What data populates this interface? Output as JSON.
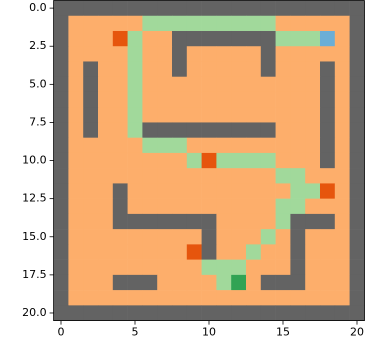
{
  "chart_data": {
    "type": "heatmap",
    "colors": [
      "#fdae6b",
      "#636363",
      "#a1d99b",
      "#e6550d",
      "#6baed6",
      "#31a354"
    ],
    "xlim": [
      -0.5,
      20.5
    ],
    "ylim": [
      20.5,
      -0.5
    ],
    "xticks": [
      0,
      5,
      10,
      15,
      20
    ],
    "yticks": [
      {
        "value": 0,
        "label": "0.0"
      },
      {
        "value": 2.5,
        "label": "2.5"
      },
      {
        "value": 5,
        "label": "5.0"
      },
      {
        "value": 7.5,
        "label": "7.5"
      },
      {
        "value": 10,
        "label": "10.0"
      },
      {
        "value": 12.5,
        "label": "12.5"
      },
      {
        "value": 15,
        "label": "15.0"
      },
      {
        "value": 17.5,
        "label": "17.5"
      },
      {
        "value": 20,
        "label": "20.0"
      }
    ],
    "z": [
      [
        1,
        1,
        1,
        1,
        1,
        1,
        1,
        1,
        1,
        1,
        1,
        1,
        1,
        1,
        1,
        1,
        1,
        1,
        1,
        1,
        1
      ],
      [
        1,
        0,
        0,
        0,
        0,
        0,
        2,
        2,
        2,
        2,
        2,
        2,
        2,
        2,
        2,
        0,
        0,
        0,
        0,
        0,
        1
      ],
      [
        1,
        0,
        0,
        0,
        3,
        2,
        0,
        0,
        1,
        1,
        1,
        1,
        1,
        1,
        1,
        2,
        2,
        2,
        4,
        0,
        1
      ],
      [
        1,
        0,
        0,
        0,
        0,
        2,
        0,
        0,
        1,
        0,
        0,
        0,
        0,
        0,
        1,
        0,
        0,
        0,
        0,
        0,
        1
      ],
      [
        1,
        0,
        1,
        0,
        0,
        2,
        0,
        0,
        1,
        0,
        0,
        0,
        0,
        0,
        1,
        0,
        0,
        0,
        1,
        0,
        1
      ],
      [
        1,
        0,
        1,
        0,
        0,
        2,
        0,
        0,
        0,
        0,
        0,
        0,
        0,
        0,
        0,
        0,
        0,
        0,
        1,
        0,
        1
      ],
      [
        1,
        0,
        1,
        0,
        0,
        2,
        0,
        0,
        0,
        0,
        0,
        0,
        0,
        0,
        0,
        0,
        0,
        0,
        1,
        0,
        1
      ],
      [
        1,
        0,
        1,
        0,
        0,
        2,
        0,
        0,
        0,
        0,
        0,
        0,
        0,
        0,
        0,
        0,
        0,
        0,
        1,
        0,
        1
      ],
      [
        1,
        0,
        1,
        0,
        0,
        2,
        1,
        1,
        1,
        1,
        1,
        1,
        1,
        1,
        1,
        0,
        0,
        0,
        1,
        0,
        1
      ],
      [
        1,
        0,
        0,
        0,
        0,
        0,
        2,
        2,
        2,
        0,
        0,
        0,
        0,
        0,
        0,
        0,
        0,
        0,
        1,
        0,
        1
      ],
      [
        1,
        0,
        0,
        0,
        0,
        0,
        0,
        0,
        0,
        2,
        3,
        2,
        2,
        2,
        2,
        0,
        0,
        0,
        1,
        0,
        1
      ],
      [
        1,
        0,
        0,
        0,
        0,
        0,
        0,
        0,
        0,
        0,
        0,
        0,
        0,
        0,
        0,
        2,
        2,
        0,
        0,
        0,
        1
      ],
      [
        1,
        0,
        0,
        0,
        1,
        0,
        0,
        0,
        0,
        0,
        0,
        0,
        0,
        0,
        0,
        0,
        2,
        2,
        3,
        0,
        1
      ],
      [
        1,
        0,
        0,
        0,
        1,
        0,
        0,
        0,
        0,
        0,
        0,
        0,
        0,
        0,
        0,
        2,
        2,
        0,
        0,
        0,
        1
      ],
      [
        1,
        0,
        0,
        0,
        1,
        1,
        1,
        1,
        1,
        1,
        1,
        0,
        0,
        0,
        0,
        2,
        1,
        1,
        1,
        0,
        1
      ],
      [
        1,
        0,
        0,
        0,
        0,
        0,
        0,
        0,
        0,
        0,
        1,
        0,
        0,
        0,
        2,
        0,
        1,
        0,
        0,
        0,
        1
      ],
      [
        1,
        0,
        0,
        0,
        0,
        0,
        0,
        0,
        0,
        3,
        1,
        0,
        0,
        2,
        0,
        0,
        1,
        0,
        0,
        0,
        1
      ],
      [
        1,
        0,
        0,
        0,
        0,
        0,
        0,
        0,
        0,
        0,
        2,
        2,
        2,
        0,
        0,
        0,
        1,
        0,
        0,
        0,
        1
      ],
      [
        1,
        0,
        0,
        0,
        1,
        1,
        1,
        0,
        0,
        0,
        0,
        2,
        5,
        0,
        1,
        1,
        1,
        0,
        0,
        0,
        1
      ],
      [
        1,
        0,
        0,
        0,
        0,
        0,
        0,
        0,
        0,
        0,
        0,
        0,
        0,
        0,
        0,
        0,
        0,
        0,
        0,
        0,
        1
      ],
      [
        1,
        1,
        1,
        1,
        1,
        1,
        1,
        1,
        1,
        1,
        1,
        1,
        1,
        1,
        1,
        1,
        1,
        1,
        1,
        1,
        1
      ]
    ]
  }
}
